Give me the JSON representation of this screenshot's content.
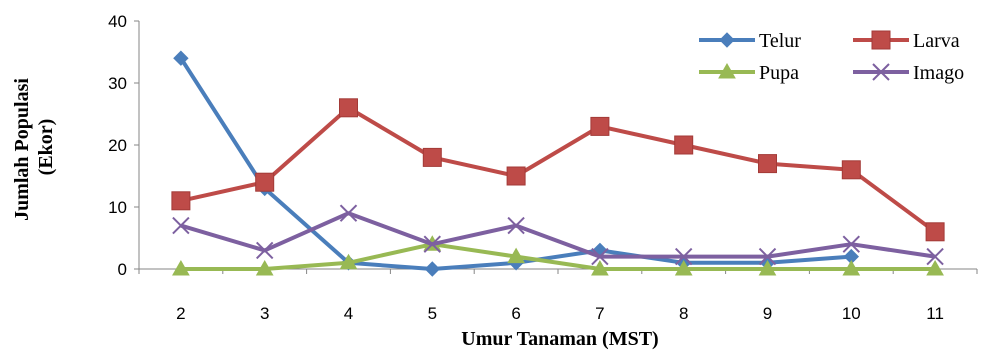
{
  "chart_data": {
    "type": "line",
    "title": "",
    "xlabel": "Umur Tanaman (MST)",
    "ylabel_line1": "Jumlah Populasi",
    "ylabel_line2": "(Ekor)",
    "x": [
      2,
      3,
      4,
      5,
      6,
      7,
      8,
      9,
      10,
      11
    ],
    "ylim": [
      0,
      40
    ],
    "yticks": [
      0,
      10,
      20,
      30,
      40
    ],
    "grid": false,
    "legend_position": "top-right",
    "series": [
      {
        "name": "Telur",
        "color": "#4a7ebb",
        "marker": "diamond",
        "values": [
          34,
          13,
          1,
          0,
          1,
          3,
          1,
          1,
          2,
          null
        ]
      },
      {
        "name": "Larva",
        "color": "#be4b48",
        "marker": "square",
        "values": [
          11,
          14,
          26,
          18,
          15,
          23,
          20,
          17,
          16,
          6
        ]
      },
      {
        "name": "Pupa",
        "color": "#98b954",
        "marker": "triangle",
        "values": [
          0,
          0,
          1,
          4,
          2,
          0,
          0,
          0,
          0,
          0
        ]
      },
      {
        "name": "Imago",
        "color": "#7d60a0",
        "marker": "x",
        "values": [
          7,
          3,
          9,
          4,
          7,
          2,
          2,
          2,
          4,
          2
        ]
      }
    ]
  }
}
